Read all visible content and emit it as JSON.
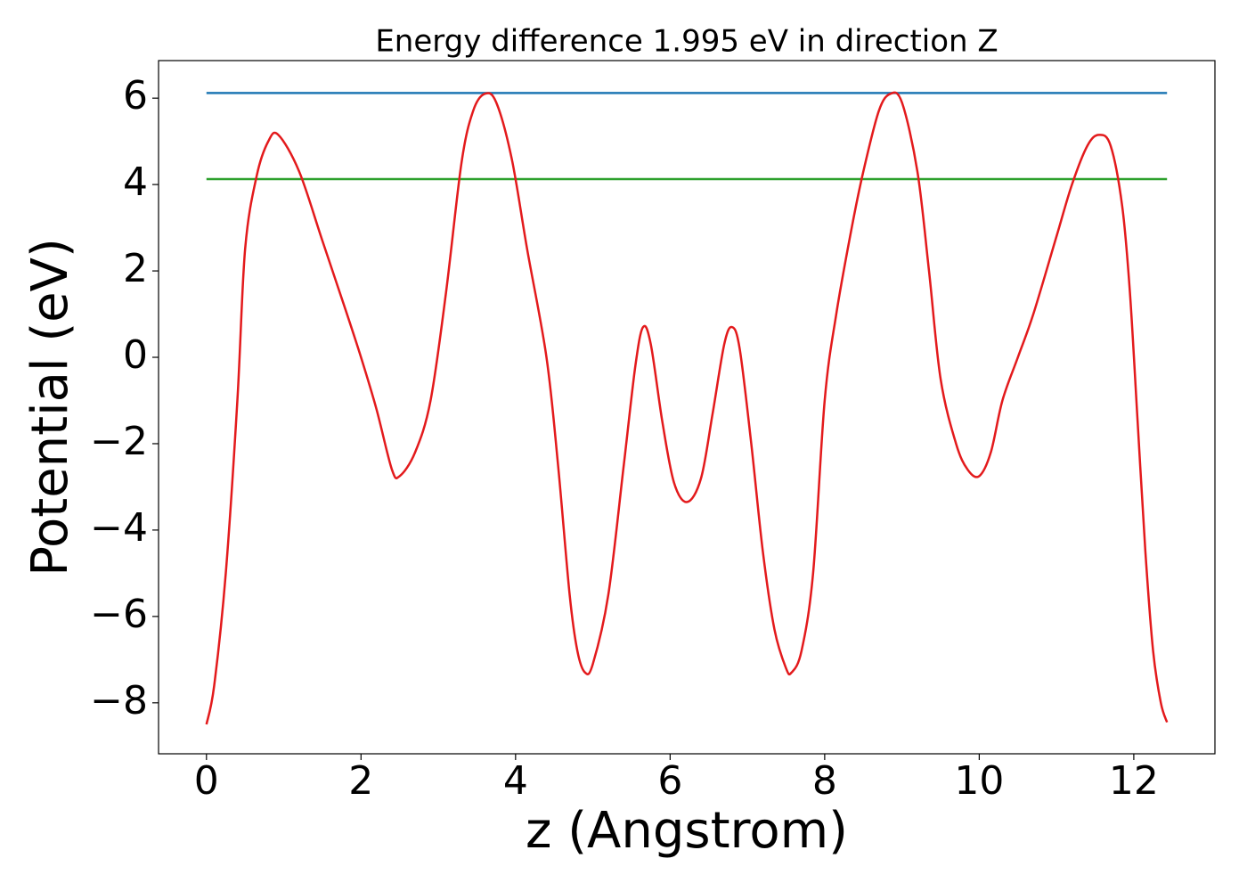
{
  "chart_data": {
    "type": "line",
    "title": "Energy difference 1.995 eV in direction Z",
    "xlabel": "z (Angstrom)",
    "ylabel": "Potential (eV)",
    "xlim": [
      -0.62,
      13.05
    ],
    "ylim": [
      -9.18,
      6.87
    ],
    "xticks": [
      0,
      2,
      4,
      6,
      8,
      10,
      12
    ],
    "yticks": [
      {
        "value": -8,
        "label": "−8"
      },
      {
        "value": -6,
        "label": "−6"
      },
      {
        "value": -4,
        "label": "−4"
      },
      {
        "value": -2,
        "label": "−2"
      },
      0,
      2,
      4,
      6
    ],
    "series": [
      {
        "color": "#1f77b4",
        "x": [
          0,
          12.43
        ],
        "values": [
          6.12,
          6.12
        ]
      },
      {
        "color": "#2ca02c",
        "x": [
          0,
          12.43
        ],
        "values": [
          4.125,
          4.125
        ]
      },
      {
        "color": "#e31a1c",
        "x": [
          0,
          0.1,
          0.25,
          0.4,
          0.5,
          0.65,
          0.8,
          0.93,
          1.2,
          1.5,
          1.8,
          2.0,
          2.2,
          2.4,
          2.5,
          2.7,
          2.9,
          3.1,
          3.3,
          3.45,
          3.6,
          3.75,
          3.95,
          4.15,
          4.4,
          4.55,
          4.7,
          4.8,
          4.9,
          5.0,
          5.2,
          5.4,
          5.55,
          5.65,
          5.75,
          5.9,
          6.05,
          6.22,
          6.4,
          6.55,
          6.7,
          6.8,
          6.9,
          7.05,
          7.2,
          7.35,
          7.5,
          7.57,
          7.7,
          7.85,
          8.0,
          8.15,
          8.35,
          8.5,
          8.7,
          8.85,
          9.0,
          9.2,
          9.35,
          9.5,
          9.7,
          9.85,
          10.0,
          10.15,
          10.3,
          10.5,
          10.7,
          11.0,
          11.2,
          11.4,
          11.55,
          11.7,
          11.85,
          11.95,
          12.05,
          12.15,
          12.25,
          12.35,
          12.43
        ],
        "values": [
          -8.5,
          -7.6,
          -5.0,
          -1.0,
          2.5,
          4.2,
          5.0,
          5.15,
          4.3,
          2.7,
          1.1,
          0.0,
          -1.2,
          -2.6,
          -2.75,
          -2.2,
          -1.0,
          1.5,
          4.5,
          5.7,
          6.1,
          5.9,
          4.6,
          2.5,
          0.0,
          -2.5,
          -5.5,
          -6.8,
          -7.3,
          -7.1,
          -5.5,
          -2.5,
          -0.2,
          0.7,
          0.3,
          -1.5,
          -2.9,
          -3.35,
          -2.8,
          -1.3,
          0.3,
          0.7,
          0.2,
          -2.0,
          -4.5,
          -6.3,
          -7.2,
          -7.3,
          -6.8,
          -5.0,
          -1.0,
          1.0,
          3.0,
          4.3,
          5.7,
          6.1,
          5.9,
          4.3,
          2.0,
          -0.5,
          -2.0,
          -2.6,
          -2.75,
          -2.2,
          -1.0,
          0.0,
          1.0,
          2.8,
          4.0,
          4.9,
          5.15,
          4.9,
          3.5,
          1.5,
          -1.5,
          -4.5,
          -6.8,
          -8.0,
          -8.45
        ]
      }
    ]
  }
}
